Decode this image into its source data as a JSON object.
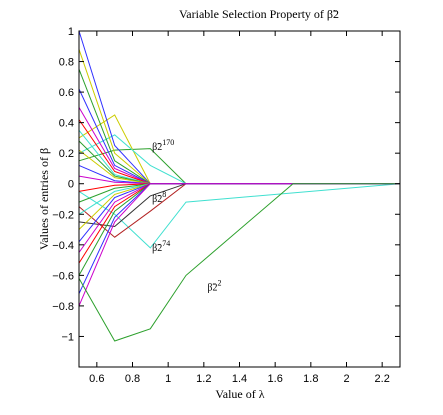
{
  "chart_data": {
    "type": "line",
    "title": "Variable Selection Property of β̃2",
    "xlabel": "Value of λ",
    "ylabel": "Values of entries of β",
    "xlim": [
      0.5,
      2.3
    ],
    "ylim": [
      -1.2,
      1.0
    ],
    "xticks": [
      0.6,
      0.8,
      1,
      1.2,
      1.4,
      1.6,
      1.8,
      2,
      2.2
    ],
    "xtick_labels": [
      "0.6",
      "0.8",
      "1",
      "1.2",
      "1.4",
      "1.6",
      "1.8",
      "2",
      "2.2"
    ],
    "yticks": [
      -1,
      -0.8,
      -0.6,
      -0.4,
      -0.2,
      0,
      0.2,
      0.4,
      0.6,
      0.8,
      1
    ],
    "ytick_labels": [
      "−1",
      "−0.8",
      "−0.6",
      "−0.4",
      "−0.2",
      "0",
      "0.2",
      "0.4",
      "0.6",
      "0.8",
      "1"
    ],
    "grid": false,
    "annotations": [
      {
        "text": "β̃2",
        "sup": "170",
        "x": 0.91,
        "y": 0.22
      },
      {
        "text": "β̃2",
        "sup": "8",
        "x": 0.91,
        "y": -0.12
      },
      {
        "text": "β̃2",
        "sup": "74",
        "x": 0.91,
        "y": -0.44
      },
      {
        "text": "β̃2",
        "sup": "2",
        "x": 1.22,
        "y": -0.7
      }
    ],
    "series": [
      {
        "x": [
          0.5,
          0.7,
          0.9,
          1.1,
          2.3
        ],
        "values": [
          -0.62,
          -1.03,
          -0.95,
          -0.6,
          0
        ],
        "color": "#2ca02c",
        "note": "beta2",
        "extra": [
          1.7
        ]
      },
      {
        "x": [
          0.5,
          0.7,
          0.9,
          1.1,
          2.3
        ],
        "values": [
          0.15,
          0.22,
          0.23,
          0,
          0
        ],
        "color": "#2ca02c"
      },
      {
        "x": [
          0.5,
          0.7,
          0.9,
          1.1,
          2.3
        ],
        "values": [
          -0.05,
          -0.2,
          -0.42,
          -0.12,
          0
        ],
        "color": "#40e0d0"
      },
      {
        "x": [
          0.5,
          0.7,
          0.9,
          1.1,
          2.3
        ],
        "values": [
          -0.15,
          -0.35,
          -0.18,
          0,
          0
        ],
        "color": "#b22222"
      },
      {
        "x": [
          0.5,
          0.7,
          0.9,
          1.1,
          2.3
        ],
        "values": [
          0.3,
          0.45,
          0,
          0,
          0
        ],
        "color": "#cccc00"
      },
      {
        "x": [
          0.5,
          0.7,
          0.9,
          1.1,
          2.3
        ],
        "values": [
          0.2,
          0.32,
          0.12,
          0,
          0
        ],
        "color": "#40e0d0"
      },
      {
        "x": [
          0.5,
          0.7,
          0.9,
          1.1,
          2.3
        ],
        "values": [
          -0.25,
          -0.28,
          -0.08,
          0,
          0
        ],
        "color": "#333333"
      },
      {
        "x": [
          0.5,
          0.7,
          0.9,
          1.1,
          2.3
        ],
        "values": [
          1.0,
          0.25,
          0,
          0,
          0
        ],
        "color": "#3030ff"
      },
      {
        "x": [
          0.5,
          0.7,
          0.9,
          1.1,
          2.3
        ],
        "values": [
          0.88,
          0.2,
          0,
          0,
          0
        ],
        "color": "#cccc00"
      },
      {
        "x": [
          0.5,
          0.7,
          0.9,
          1.1,
          2.3
        ],
        "values": [
          0.75,
          0.15,
          0,
          0,
          0
        ],
        "color": "#2ca02c"
      },
      {
        "x": [
          0.5,
          0.7,
          0.9,
          1.1,
          2.3
        ],
        "values": [
          0.62,
          0.12,
          0,
          0,
          0
        ],
        "color": "#3030ff"
      },
      {
        "x": [
          0.5,
          0.7,
          0.9,
          1.1,
          2.3
        ],
        "values": [
          0.5,
          0.1,
          0,
          0,
          0
        ],
        "color": "#cc00cc"
      },
      {
        "x": [
          0.5,
          0.7,
          0.9,
          1.1,
          2.3
        ],
        "values": [
          0.42,
          0.08,
          0,
          0,
          0
        ],
        "color": "#ff0000"
      },
      {
        "x": [
          0.5,
          0.7,
          0.9,
          1.1,
          2.3
        ],
        "values": [
          0.35,
          0.06,
          0,
          0,
          0
        ],
        "color": "#40e0d0"
      },
      {
        "x": [
          0.5,
          0.7,
          0.9,
          1.1,
          2.3
        ],
        "values": [
          0.28,
          0.05,
          0,
          0,
          0
        ],
        "color": "#2ca02c"
      },
      {
        "x": [
          0.5,
          0.7,
          0.9,
          1.1,
          2.3
        ],
        "values": [
          0.22,
          0.04,
          0,
          0,
          0
        ],
        "color": "#cccc00"
      },
      {
        "x": [
          0.5,
          0.7,
          0.9,
          1.1,
          2.3
        ],
        "values": [
          0.12,
          0.02,
          0,
          0,
          0
        ],
        "color": "#3030ff"
      },
      {
        "x": [
          0.5,
          0.7,
          0.9,
          1.1,
          2.3
        ],
        "values": [
          0.05,
          0.01,
          0,
          0,
          0
        ],
        "color": "#cc00cc"
      },
      {
        "x": [
          0.5,
          0.7,
          0.9,
          1.1,
          2.3
        ],
        "values": [
          -0.05,
          -0.01,
          0,
          0,
          0
        ],
        "color": "#ff0000"
      },
      {
        "x": [
          0.5,
          0.7,
          0.9,
          1.1,
          2.3
        ],
        "values": [
          -0.12,
          -0.03,
          0,
          0,
          0
        ],
        "color": "#2ca02c"
      },
      {
        "x": [
          0.5,
          0.7,
          0.9,
          1.1,
          2.3
        ],
        "values": [
          -0.2,
          -0.05,
          0,
          0,
          0
        ],
        "color": "#40e0d0"
      },
      {
        "x": [
          0.5,
          0.7,
          0.9,
          1.1,
          2.3
        ],
        "values": [
          -0.3,
          -0.07,
          0,
          0,
          0
        ],
        "color": "#cccc00"
      },
      {
        "x": [
          0.5,
          0.7,
          0.9,
          1.1,
          2.3
        ],
        "values": [
          -0.38,
          -0.09,
          0,
          0,
          0
        ],
        "color": "#3030ff"
      },
      {
        "x": [
          0.5,
          0.7,
          0.9,
          1.1,
          2.3
        ],
        "values": [
          -0.45,
          -0.12,
          0,
          0,
          0
        ],
        "color": "#cc00cc"
      },
      {
        "x": [
          0.5,
          0.7,
          0.9,
          1.1,
          2.3
        ],
        "values": [
          -0.52,
          -0.15,
          0,
          0,
          0
        ],
        "color": "#ff0000"
      },
      {
        "x": [
          0.5,
          0.7,
          0.9,
          1.1,
          2.3
        ],
        "values": [
          -0.6,
          -0.18,
          0,
          0,
          0
        ],
        "color": "#2ca02c"
      },
      {
        "x": [
          0.5,
          0.7,
          0.9,
          1.1,
          2.3
        ],
        "values": [
          -0.72,
          -0.22,
          0,
          0,
          0
        ],
        "color": "#3030ff"
      },
      {
        "x": [
          0.5,
          0.7,
          0.9,
          1.1,
          2.3
        ],
        "values": [
          -0.8,
          -0.25,
          0,
          0,
          0
        ],
        "color": "#cc00cc"
      }
    ]
  }
}
